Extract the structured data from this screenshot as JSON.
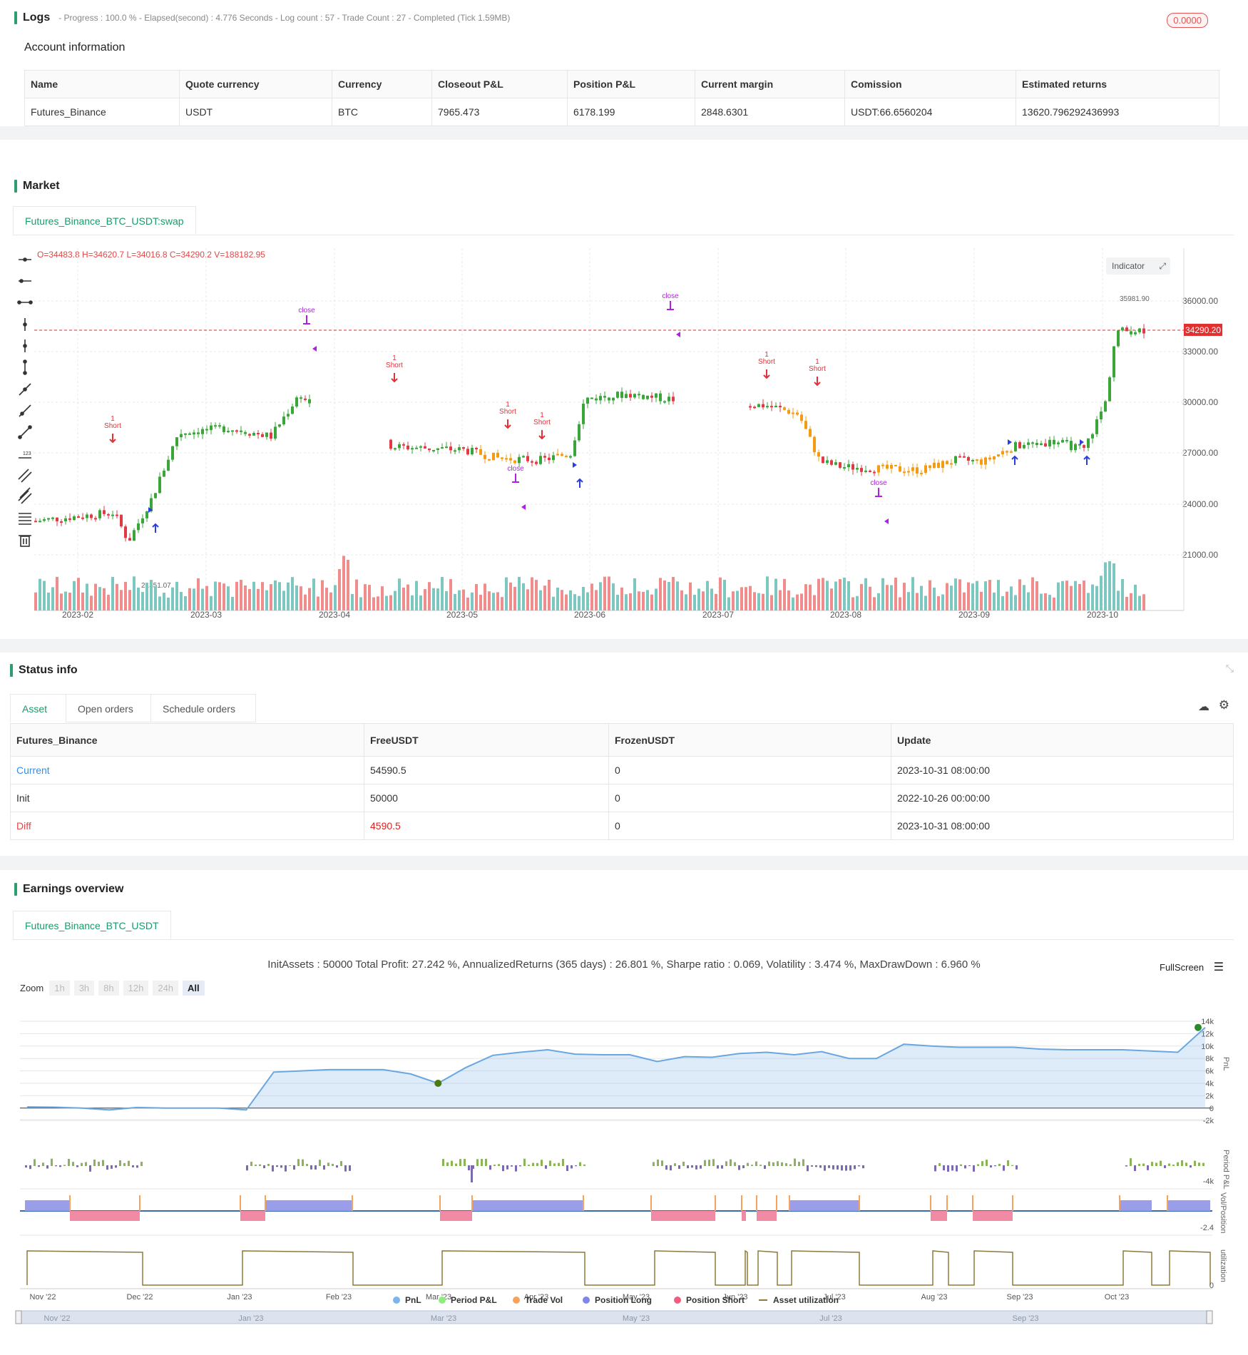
{
  "logs": {
    "title": "Logs",
    "status": "- Progress : 100.0 % - Elapsed(second) : 4.776  Seconds - Log count : 57 - Trade Count : 27 - Completed (Tick 1.59MB)",
    "badge": "0.0000"
  },
  "account": {
    "title": "Account information",
    "headers": [
      "Name",
      "Quote currency",
      "Currency",
      "Closeout P&L",
      "Position P&L",
      "Current margin",
      "Comission",
      "Estimated returns"
    ],
    "row": [
      "Futures_Binance",
      "USDT",
      "BTC",
      "7965.473",
      "6178.199",
      "2848.6301",
      "USDT:66.6560204",
      "13620.796292436993"
    ]
  },
  "market": {
    "title": "Market",
    "tab": "Futures_Binance_BTC_USDT:swap",
    "ohlc": "O=34483.8 H=34620.7 L=34016.8 C=34290.2 V=188182.95",
    "indicator_button": "Indicator",
    "price_label": "34290.20",
    "high_label": "35981.90",
    "low_label": "21351.07",
    "y_ticks": [
      "36000.00",
      "33000.00",
      "30000.00",
      "27000.00",
      "24000.00",
      "21000.00"
    ],
    "x_ticks": [
      "2023-02",
      "2023-03",
      "2023-04",
      "2023-05",
      "2023-06",
      "2023-07",
      "2023-08",
      "2023-09",
      "2023-10"
    ],
    "toolbar_icons": [
      "horizontal-line-icon",
      "horizontal-ray-icon",
      "horizontal-segment-icon",
      "vertical-line-icon",
      "vertical-ray-icon",
      "vertical-segment-icon",
      "trend-line-icon",
      "ray-icon",
      "segment-icon",
      "price-range-icon",
      "parallel-channel-icon",
      "pitchfork-icon",
      "fib-levels-icon",
      "trash-icon"
    ],
    "signals": [
      {
        "t": "1",
        "t2": "Short",
        "t3": "short",
        "color": "#e0303a"
      },
      {
        "t": "Long",
        "t2": "close",
        "color": "#b020e0"
      }
    ]
  },
  "status": {
    "title": "Status info",
    "tabs": [
      "Asset",
      "Open orders",
      "Schedule orders"
    ],
    "headers": [
      "Futures_Binance",
      "FreeUSDT",
      "FrozenUSDT",
      "Update"
    ],
    "rows": [
      [
        "Current",
        "54590.5",
        "0",
        "2023-10-31 08:00:00"
      ],
      [
        "Init",
        "50000",
        "0",
        "2022-10-26 00:00:00"
      ],
      [
        "Diff",
        "4590.5",
        "0",
        "2023-10-31 08:00:00"
      ]
    ]
  },
  "earnings": {
    "title": "Earnings overview",
    "tab": "Futures_Binance_BTC_USDT",
    "summary": "InitAssets : 50000 Total Profit: 27.242 %, AnnualizedReturns (365 days) : 26.801 %, Sharpe ratio : 0.069, Volatility : 3.474 %, MaxDrawDown : 6.960 %",
    "fullscreen": "FullScreen",
    "zoom_label": "Zoom",
    "zoom_buttons": [
      "1h",
      "3h",
      "8h",
      "12h",
      "24h",
      "All"
    ],
    "pnl_ticks": [
      "14k",
      "12k",
      "10k",
      "8k",
      "6k",
      "4k",
      "2k",
      "0",
      "-2k"
    ],
    "period_tick": "-4k",
    "vol_tick": "-2.4",
    "util_tick": "0",
    "axis_titles": [
      "PnL",
      "Period P&L",
      "Vol/Position",
      "utilization"
    ],
    "x_ticks": [
      "Nov '22",
      "Dec '22",
      "Jan '23",
      "Feb '23",
      "Mar '23",
      "Apr '23",
      "May '23",
      "Jun '23",
      "Jul '23",
      "Aug '23",
      "Sep '23",
      "Oct '23"
    ],
    "nav_ticks": [
      "Nov '22",
      "Jan '23",
      "Mar '23",
      "May '23",
      "Jul '23",
      "Sep '23"
    ],
    "legend": [
      {
        "label": "PnL",
        "color": "#7cb5ec"
      },
      {
        "label": "Period P&L",
        "color": "#90ed7d"
      },
      {
        "label": "Trade Vol",
        "color": "#f7a35c"
      },
      {
        "label": "Position Long",
        "color": "#8085e9"
      },
      {
        "label": "Position Short",
        "color": "#f15c80"
      },
      {
        "label": "Asset utilization",
        "color": "#8d7a3a"
      }
    ]
  },
  "chart_data": {
    "type": "line",
    "title": "",
    "series": [
      {
        "name": "PnL",
        "values": [
          200,
          150,
          0,
          -300,
          100,
          0,
          0,
          0,
          -300,
          5800,
          6000,
          6200,
          6200,
          6200,
          5500,
          4000,
          6500,
          8500,
          9000,
          9400,
          8700,
          8600,
          8600,
          7500,
          8300,
          8200,
          8800,
          9000,
          8600,
          9100,
          8000,
          8000,
          10300,
          10000,
          9800,
          9800,
          9800,
          9500,
          9400,
          9400,
          9400,
          9200,
          9000,
          13000
        ]
      },
      {
        "name": "Asset utilization",
        "values": [
          90,
          0,
          90,
          0,
          90,
          0,
          90,
          0,
          90,
          0,
          90,
          0,
          90,
          0,
          90,
          0,
          90,
          0,
          90,
          0
        ]
      }
    ],
    "x_range": [
      "Nov '22",
      "Oct '23"
    ],
    "ylim": [
      -2000,
      14000
    ]
  }
}
